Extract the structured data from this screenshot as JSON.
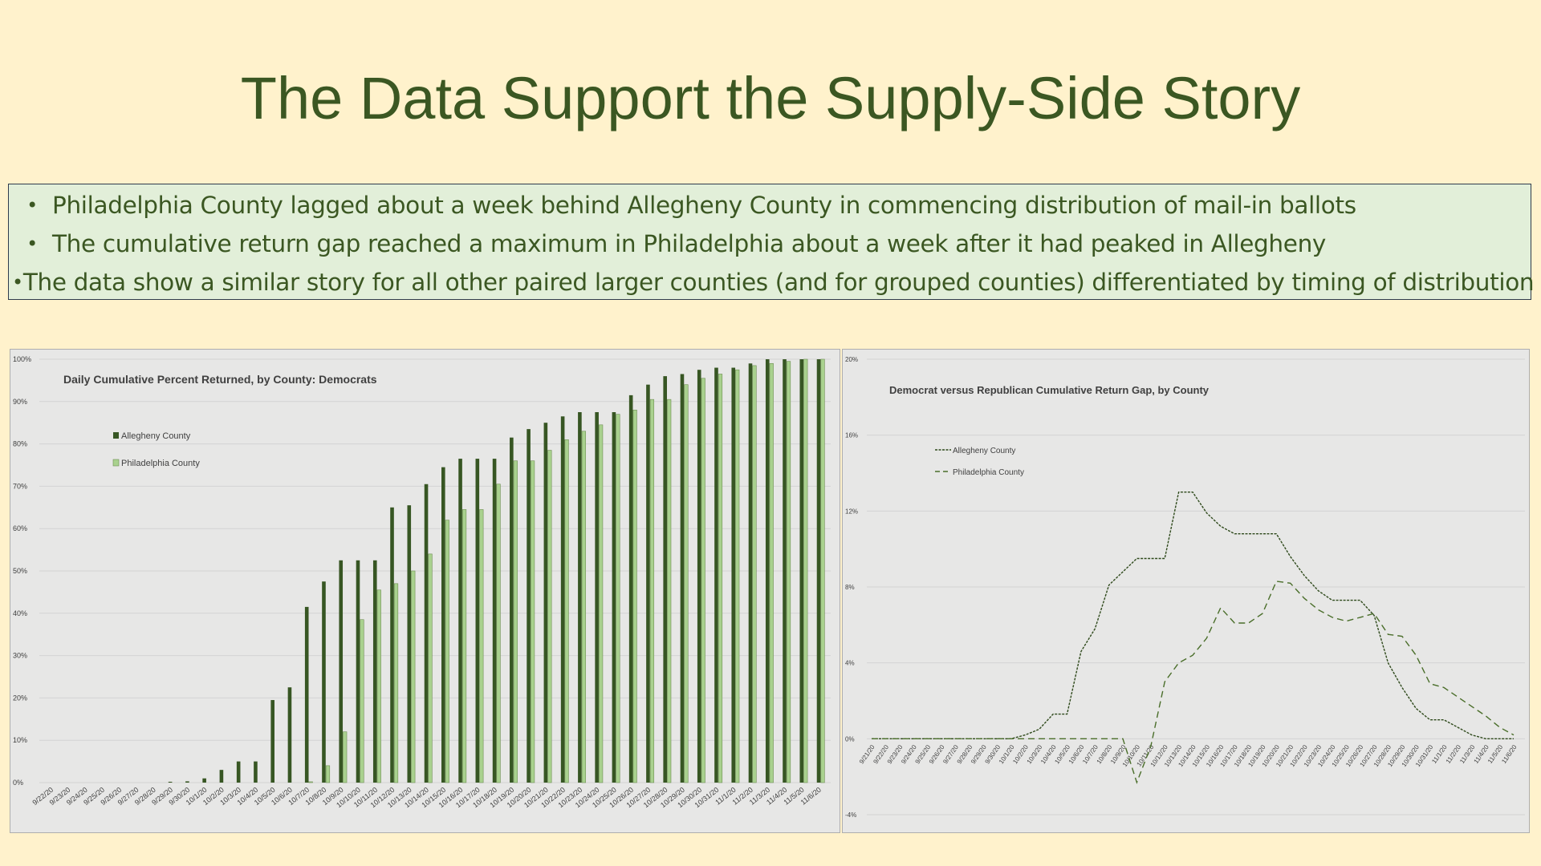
{
  "title": "The Data Support the Supply-Side Story",
  "bullets": [
    "Philadelphia County lagged about a week behind Allegheny County in commencing distribution of mail-in ballots",
    "The cumulative return gap reached a maximum in Philadelphia about a week after it had peaked in Allegheny",
    "The data show a similar story for all other paired larger counties (and for grouped counties) differentiated by timing of distribution"
  ],
  "colors": {
    "background": "#fff2cc",
    "title": "#3b5722",
    "box_fill": "#e2efd9",
    "allegheny": "#375623",
    "philadelphia": "#a9d18e",
    "chart_bg": "#e7e7e6"
  },
  "chart_data": [
    {
      "type": "bar",
      "title": "Daily Cumulative Percent Returned, by County: Democrats",
      "xlabel": "",
      "ylabel": "",
      "ylim": [
        0,
        100
      ],
      "yticks": [
        "0%",
        "10%",
        "20%",
        "30%",
        "40%",
        "50%",
        "60%",
        "70%",
        "80%",
        "90%",
        "100%"
      ],
      "legend_position": "top-left",
      "grid": true,
      "categories": [
        "9/22/20",
        "9/23/20",
        "9/24/20",
        "9/25/20",
        "9/26/20",
        "9/27/20",
        "9/28/20",
        "9/29/20",
        "9/30/20",
        "10/1/20",
        "10/2/20",
        "10/3/20",
        "10/4/20",
        "10/5/20",
        "10/6/20",
        "10/7/20",
        "10/8/20",
        "10/9/20",
        "10/10/20",
        "10/11/20",
        "10/12/20",
        "10/13/20",
        "10/14/20",
        "10/15/20",
        "10/16/20",
        "10/17/20",
        "10/18/20",
        "10/19/20",
        "10/20/20",
        "10/21/20",
        "10/22/20",
        "10/23/20",
        "10/24/20",
        "10/25/20",
        "10/26/20",
        "10/27/20",
        "10/28/20",
        "10/29/20",
        "10/30/20",
        "10/31/20",
        "11/1/20",
        "11/2/20",
        "11/3/20",
        "11/4/20",
        "11/5/20",
        "11/6/20"
      ],
      "series": [
        {
          "name": "Allegheny County",
          "values": [
            0,
            0,
            0,
            0,
            0,
            0,
            0,
            0.2,
            0.3,
            1,
            3,
            5,
            5,
            19.5,
            22.5,
            41.5,
            47.5,
            52.5,
            52.5,
            52.5,
            65,
            65.5,
            70.5,
            74.5,
            76.5,
            76.5,
            76.5,
            81.5,
            83.5,
            85,
            86.5,
            87.5,
            87.5,
            87.5,
            91.5,
            94,
            96,
            96.5,
            97.5,
            98,
            98,
            99,
            100,
            100,
            100,
            100
          ]
        },
        {
          "name": "Philadelphia County",
          "values": [
            0,
            0,
            0,
            0,
            0,
            0,
            0,
            0,
            0,
            0,
            0,
            0,
            0,
            0,
            0,
            0.2,
            4,
            12,
            38.5,
            45.5,
            47,
            50,
            54,
            62,
            64.5,
            64.5,
            70.5,
            76,
            76,
            78.5,
            81,
            83,
            84.5,
            87,
            88,
            90.5,
            90.5,
            94,
            95.5,
            96.5,
            97.5,
            98.5,
            99,
            99.5,
            100,
            100
          ]
        }
      ]
    },
    {
      "type": "line",
      "title": "Democrat versus Republican Cumulative Return Gap, by County",
      "xlabel": "",
      "ylabel": "",
      "ylim": [
        -4,
        20
      ],
      "yticks": [
        "-4%",
        "0%",
        "4%",
        "8%",
        "12%",
        "16%",
        "20%"
      ],
      "legend_position": "top-left",
      "grid": true,
      "x": [
        "9/21/20",
        "9/22/20",
        "9/23/20",
        "9/24/20",
        "9/25/20",
        "9/26/20",
        "9/27/20",
        "9/28/20",
        "9/29/20",
        "9/30/20",
        "10/1/20",
        "10/2/20",
        "10/3/20",
        "10/4/20",
        "10/5/20",
        "10/6/20",
        "10/7/20",
        "10/8/20",
        "10/9/20",
        "10/10/20",
        "10/11/20",
        "10/12/20",
        "10/13/20",
        "10/14/20",
        "10/15/20",
        "10/16/20",
        "10/17/20",
        "10/18/20",
        "10/19/20",
        "10/20/20",
        "10/21/20",
        "10/22/20",
        "10/23/20",
        "10/24/20",
        "10/25/20",
        "10/26/20",
        "10/27/20",
        "10/28/20",
        "10/29/20",
        "10/30/20",
        "10/31/20",
        "11/1/20",
        "11/2/20",
        "11/3/20",
        "11/4/20",
        "11/5/20",
        "11/6/20"
      ],
      "series": [
        {
          "name": "Allegheny County",
          "values": [
            0,
            0,
            0,
            0,
            0,
            0,
            0,
            0,
            0,
            0,
            0,
            0.2,
            0.5,
            1.3,
            1.3,
            4.6,
            5.8,
            8.1,
            8.8,
            9.5,
            9.5,
            9.5,
            13,
            13,
            11.9,
            11.2,
            10.8,
            10.8,
            10.8,
            10.8,
            9.6,
            8.6,
            7.8,
            7.3,
            7.3,
            7.3,
            6.5,
            4,
            2.7,
            1.6,
            1,
            1,
            0.6,
            0.2,
            0,
            0,
            0
          ]
        },
        {
          "name": "Philadelphia County",
          "values": [
            0,
            0,
            0,
            0,
            0,
            0,
            0,
            0,
            0,
            0,
            0,
            0,
            0,
            0,
            0,
            0,
            0,
            0,
            0,
            -2.3,
            -0.4,
            3,
            4,
            4.4,
            5.3,
            6.9,
            6.1,
            6.1,
            6.6,
            8.3,
            8.2,
            7.4,
            6.8,
            6.4,
            6.2,
            6.4,
            6.6,
            5.5,
            5.4,
            4.4,
            2.9,
            2.7,
            2.2,
            1.7,
            1.2,
            0.6,
            0.2
          ]
        }
      ]
    }
  ]
}
